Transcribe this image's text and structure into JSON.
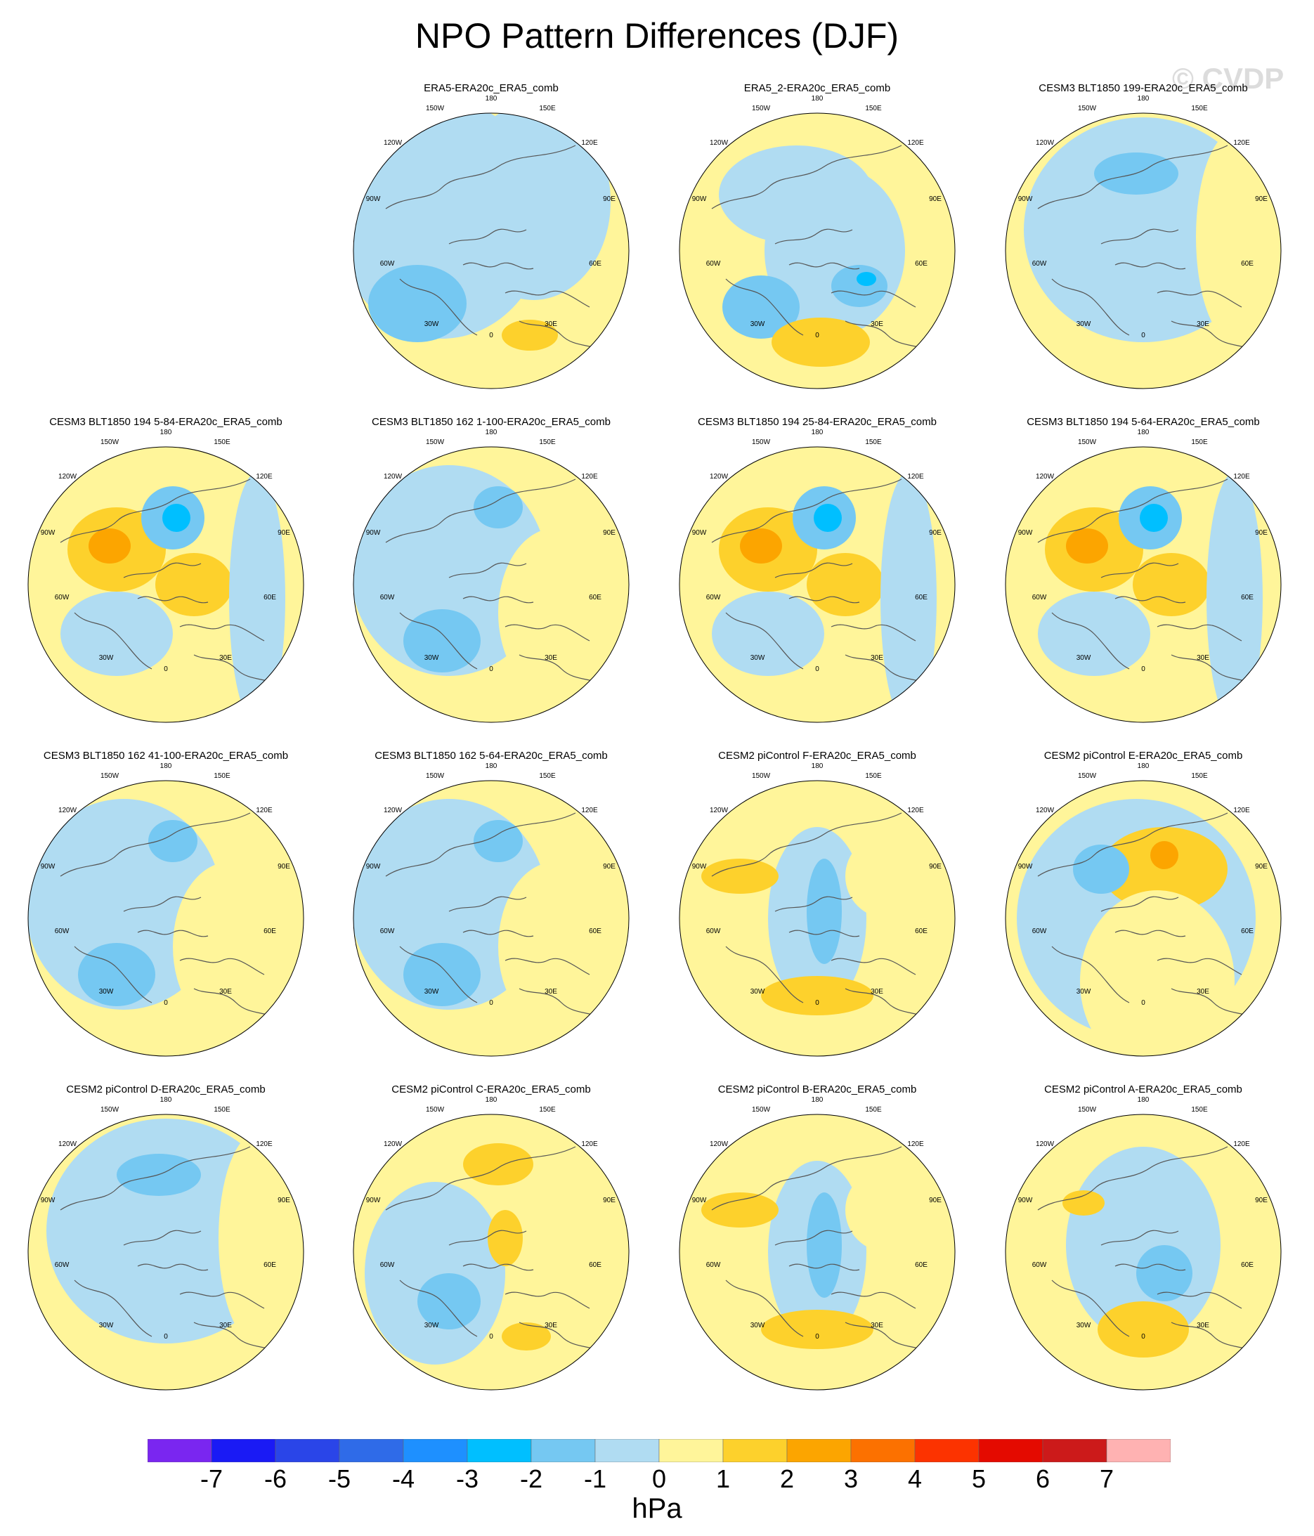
{
  "title": "NPO Pattern Differences (DJF)",
  "watermark": "© CVDP",
  "lon_labels": [
    "180",
    "150E",
    "120E",
    "90E",
    "60E",
    "30E",
    "0",
    "30W",
    "60W",
    "90W",
    "120W",
    "150W"
  ],
  "panels": [
    {
      "title": "ERA5-ERA20c_ERA5_comb",
      "row": 0,
      "col": 1,
      "pattern": "a"
    },
    {
      "title": "ERA5_2-ERA20c_ERA5_comb",
      "row": 0,
      "col": 2,
      "pattern": "b"
    },
    {
      "title": "CESM3 BLT1850 199-ERA20c_ERA5_comb",
      "row": 0,
      "col": 3,
      "pattern": "c"
    },
    {
      "title": "CESM3 BLT1850 194 5-84-ERA20c_ERA5_comb",
      "row": 1,
      "col": 0,
      "pattern": "d"
    },
    {
      "title": "CESM3 BLT1850 162 1-100-ERA20c_ERA5_comb",
      "row": 1,
      "col": 1,
      "pattern": "e"
    },
    {
      "title": "CESM3 BLT1850 194 25-84-ERA20c_ERA5_comb",
      "row": 1,
      "col": 2,
      "pattern": "d"
    },
    {
      "title": "CESM3 BLT1850 194 5-64-ERA20c_ERA5_comb",
      "row": 1,
      "col": 3,
      "pattern": "d"
    },
    {
      "title": "CESM3 BLT1850 162 41-100-ERA20c_ERA5_comb",
      "row": 2,
      "col": 0,
      "pattern": "e"
    },
    {
      "title": "CESM3 BLT1850 162 5-64-ERA20c_ERA5_comb",
      "row": 2,
      "col": 1,
      "pattern": "e"
    },
    {
      "title": "CESM2 piControl F-ERA20c_ERA5_comb",
      "row": 2,
      "col": 2,
      "pattern": "f"
    },
    {
      "title": "CESM2 piControl E-ERA20c_ERA5_comb",
      "row": 2,
      "col": 3,
      "pattern": "g"
    },
    {
      "title": "CESM2 piControl D-ERA20c_ERA5_comb",
      "row": 3,
      "col": 0,
      "pattern": "c"
    },
    {
      "title": "CESM2 piControl C-ERA20c_ERA5_comb",
      "row": 3,
      "col": 1,
      "pattern": "h"
    },
    {
      "title": "CESM2 piControl B-ERA20c_ERA5_comb",
      "row": 3,
      "col": 2,
      "pattern": "f"
    },
    {
      "title": "CESM2 piControl A-ERA20c_ERA5_comb",
      "row": 3,
      "col": 3,
      "pattern": "i"
    }
  ],
  "colorbar": {
    "unit": "hPa",
    "labels": [
      "-7",
      "-6",
      "-5",
      "-4",
      "-3",
      "-2",
      "-1",
      "0",
      "1",
      "2",
      "3",
      "4",
      "5",
      "6",
      "7"
    ],
    "colors": [
      "#7a26f0",
      "#1a1af5",
      "#2a45e8",
      "#2f6be8",
      "#1e90ff",
      "#00bfff",
      "#75c8f2",
      "#b0dcf2",
      "#fff59a",
      "#fdd12c",
      "#fca500",
      "#fc7100",
      "#fc3300",
      "#e40a00",
      "#cc1a1a",
      "#ffb2b2"
    ]
  }
}
